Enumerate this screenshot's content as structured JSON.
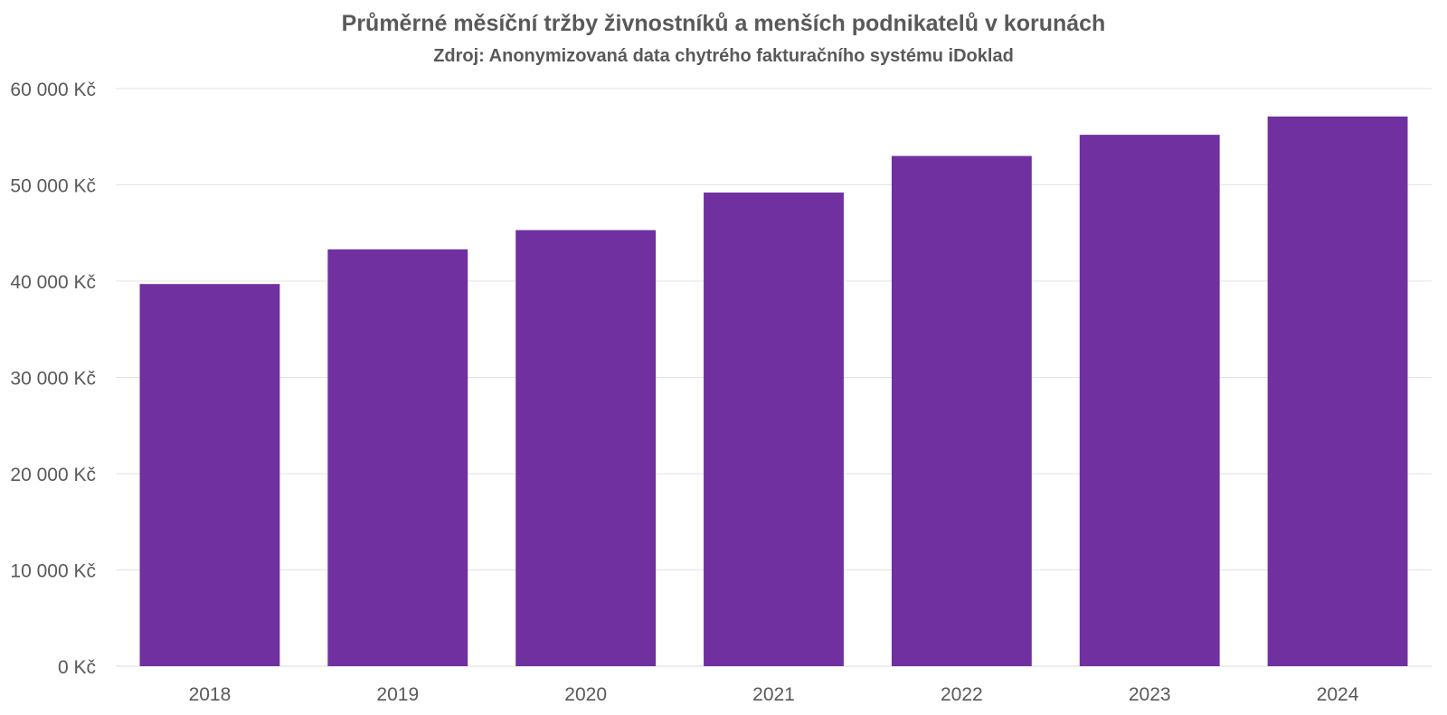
{
  "chart_data": {
    "type": "bar",
    "title": "Průměrné měsíční tržby živnostníků a menších podnikatelů v korunách",
    "subtitle": "Zdroj: Anonymizovaná data chytrého fakturačního systému iDoklad",
    "categories": [
      "2018",
      "2019",
      "2020",
      "2021",
      "2022",
      "2023",
      "2024"
    ],
    "values": [
      39700,
      43300,
      45300,
      49200,
      53000,
      55200,
      57100
    ],
    "ylim": [
      0,
      60000
    ],
    "yticks": [
      0,
      10000,
      20000,
      30000,
      40000,
      50000,
      60000
    ],
    "ytick_labels": [
      "0 Kč",
      "10 000 Kč",
      "20 000 Kč",
      "30 000 Kč",
      "40 000 Kč",
      "50 000 Kč",
      "60 000 Kč"
    ],
    "xlabel": "",
    "ylabel": "",
    "grid": true,
    "legend": "none",
    "bar_color": "#7030a0"
  }
}
